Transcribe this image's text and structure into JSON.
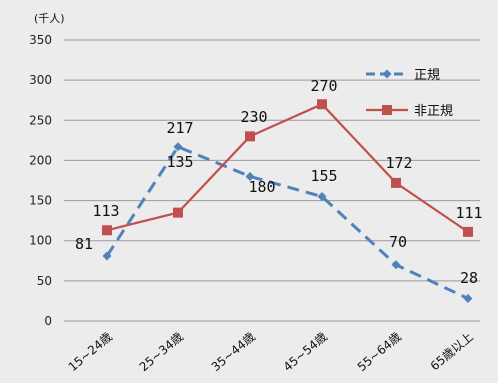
{
  "chart_data": {
    "type": "line",
    "unit_label": "(千人)",
    "categories": [
      "15~24歳",
      "25~34歳",
      "35~44歳",
      "45~54歳",
      "55~64歳",
      "65歳以上"
    ],
    "ylim": [
      0,
      350
    ],
    "yticks": [
      "0",
      "50",
      "100",
      "150",
      "200",
      "250",
      "300",
      "350"
    ],
    "grid": true,
    "legend_position": "top-right",
    "series": [
      {
        "name": "正規",
        "values": [
          81,
          217,
          180,
          155,
          70,
          28
        ],
        "labels": [
          "81",
          "217",
          "180",
          "155",
          "70",
          "28"
        ],
        "color": "#4f81bd",
        "style": "dashed",
        "marker": "diamond"
      },
      {
        "name": "非正規",
        "values": [
          113,
          135,
          230,
          270,
          172,
          111
        ],
        "labels": [
          "113",
          "135",
          "230",
          "270",
          "172",
          "111"
        ],
        "color": "#c0504d",
        "style": "solid",
        "marker": "square"
      }
    ]
  }
}
